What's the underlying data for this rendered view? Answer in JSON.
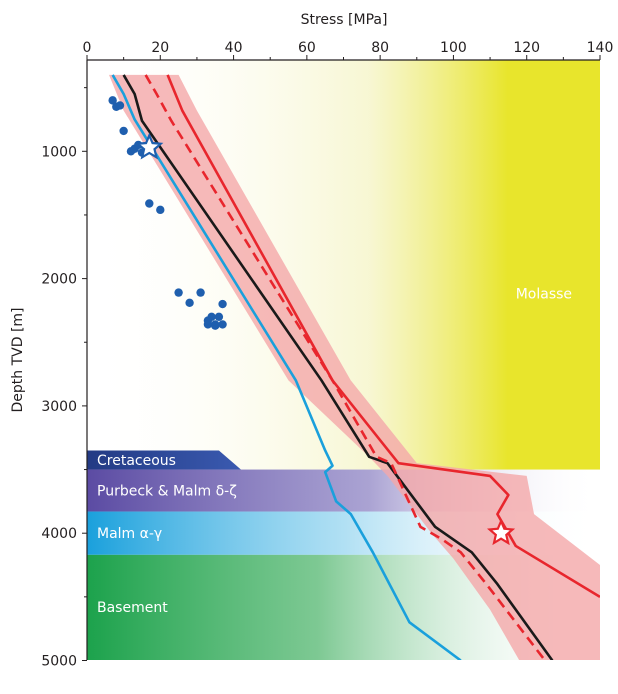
{
  "chart_data": {
    "type": "line",
    "xlabel": "Stress [MPa]",
    "ylabel": "Depth TVD [m]",
    "xlim": [
      0,
      140
    ],
    "ylim": [
      5000,
      0
    ],
    "x_ticks": [
      "0",
      "20",
      "40",
      "60",
      "80",
      "100",
      "120",
      "140"
    ],
    "y_ticks": [
      "1000",
      "2000",
      "3000",
      "4000",
      "5000"
    ],
    "x_axis_position": "top",
    "grid": false,
    "colors": {
      "blue_line": "#1aa0dc",
      "black_line": "#1a1a1a",
      "red_line": "#e8262d",
      "red_band": "#f4a7a9",
      "points": "#1f5fae",
      "molasse": "#e8e52c",
      "cretaceous": "#2a4a9a",
      "purbeck": "#6a56a8",
      "malm_ag": "#1aa0dc",
      "basement": "#1ca24c"
    },
    "units": [
      {
        "name": "Molasse",
        "top": 400,
        "bottom": 3500,
        "color": "#e8e52c"
      },
      {
        "name": "Cretaceous",
        "top": 3350,
        "bottom": 3500,
        "color": "#2a4a9a"
      },
      {
        "name": "Purbeck & Malm δ-ζ",
        "top": 3500,
        "bottom": 3830,
        "color": "#6a56a8"
      },
      {
        "name": "Malm α-γ",
        "top": 3830,
        "bottom": 4170,
        "color": "#1aa0dc"
      },
      {
        "name": "Basement",
        "top": 4170,
        "bottom": 5000,
        "color": "#1ca24c"
      }
    ],
    "series": [
      {
        "line": "solid",
        "color": "#1aa0dc",
        "x": [
          7,
          10,
          13,
          57,
          65,
          67,
          65,
          68,
          72,
          78,
          88,
          102
        ],
        "y": [
          400,
          550,
          750,
          2800,
          3350,
          3470,
          3520,
          3750,
          3850,
          4150,
          4700,
          5000
        ]
      },
      {
        "line": "solid",
        "color": "#1a1a1a",
        "x": [
          10,
          13,
          15,
          64,
          77,
          82,
          95,
          100,
          105,
          112,
          127
        ],
        "y": [
          400,
          550,
          760,
          2800,
          3400,
          3450,
          3950,
          4050,
          4150,
          4400,
          5000
        ]
      },
      {
        "line": "solid",
        "color": "#e8262d",
        "x": [
          22,
          26,
          67,
          85,
          110,
          115,
          112,
          117,
          140
        ],
        "y": [
          400,
          680,
          2800,
          3450,
          3550,
          3700,
          3850,
          4100,
          4500
        ]
      },
      {
        "line": "dashed",
        "color": "#e8262d",
        "x": [
          16,
          19,
          23,
          67,
          79,
          83,
          91,
          97,
          102,
          109,
          125
        ],
        "y": [
          400,
          550,
          760,
          2800,
          3400,
          3450,
          3950,
          4050,
          4150,
          4400,
          5000
        ]
      }
    ],
    "band": {
      "color": "#f4a7a9",
      "upper": {
        "x": [
          25,
          30,
          72,
          90,
          120,
          121,
          122,
          140
        ],
        "y": [
          400,
          680,
          2800,
          3450,
          3550,
          3700,
          3850,
          4250
        ]
      },
      "lower": {
        "x": [
          6,
          10,
          55,
          77,
          82,
          86,
          94,
          100,
          110,
          118
        ],
        "y": [
          400,
          680,
          2800,
          3400,
          3550,
          3700,
          4000,
          4200,
          4600,
          5000
        ]
      }
    },
    "points": {
      "x": [
        7,
        8,
        9,
        10,
        12,
        13,
        14,
        15,
        17,
        20,
        25,
        28,
        31,
        33,
        34,
        35,
        36,
        37,
        33,
        35,
        37
      ],
      "y": [
        600,
        650,
        640,
        840,
        1000,
        980,
        950,
        1010,
        1410,
        1460,
        2110,
        2190,
        2110,
        2360,
        2300,
        2370,
        2300,
        2200,
        2330,
        2360,
        2360
      ]
    },
    "stars": [
      {
        "x": 17,
        "y": 970,
        "color": "#1f5fae"
      },
      {
        "x": 113,
        "y": 4000,
        "color": "#e8262d"
      }
    ]
  }
}
